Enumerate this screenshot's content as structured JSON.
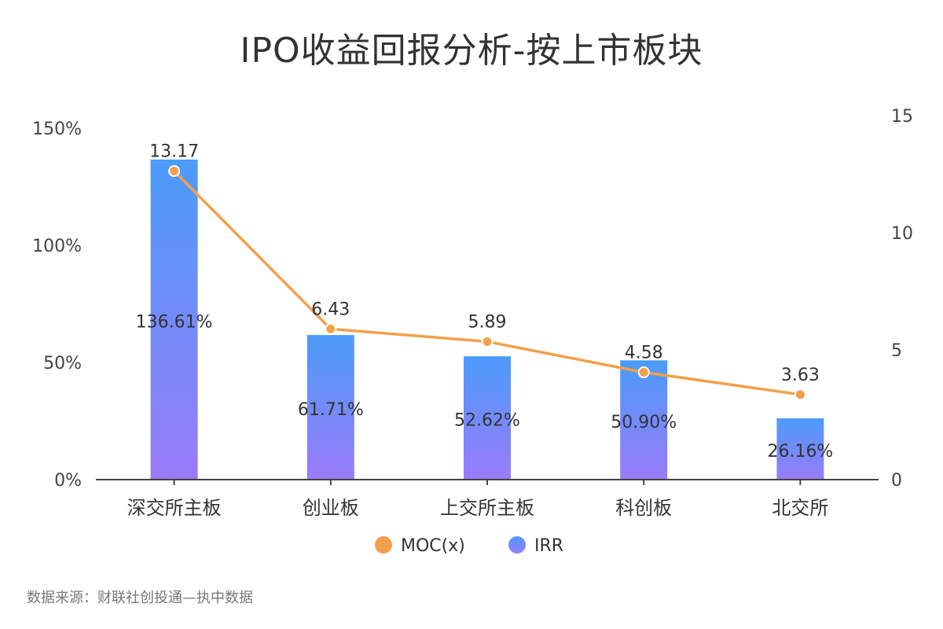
{
  "title": "IPO收益回报分析-按上市板块",
  "source": "数据来源：财联社创投通—执中数据",
  "colors": {
    "line": "#F2A04A",
    "bar_top": "#4C9BFA",
    "bar_bottom": "#9A7BFA",
    "axis": "#444444"
  },
  "chart_data": {
    "type": "bar+line",
    "categories": [
      "深交所主板",
      "创业板",
      "上交所主板",
      "科创板",
      "北交所"
    ],
    "series": [
      {
        "name": "IRR",
        "type": "bar",
        "axis": "left",
        "values": [
          136.61,
          61.71,
          52.62,
          50.9,
          26.16
        ],
        "labels": [
          "136.61%",
          "61.71%",
          "52.62%",
          "50.90%",
          "26.16%"
        ]
      },
      {
        "name": "MOC(x)",
        "type": "line",
        "axis": "right",
        "values": [
          13.17,
          6.43,
          5.89,
          4.58,
          3.63
        ],
        "labels": [
          "13.17",
          "6.43",
          "5.89",
          "4.58",
          "3.63"
        ]
      }
    ],
    "left_axis": {
      "ylim": [
        0,
        150
      ],
      "ticks": [
        0,
        50,
        100,
        150
      ],
      "tick_labels": [
        "0%",
        "50%",
        "100%",
        "150%"
      ]
    },
    "right_axis": {
      "ylim": [
        0,
        15
      ],
      "ticks": [
        0,
        5,
        10,
        15
      ],
      "tick_labels": [
        "0",
        "5",
        "10",
        "15"
      ]
    },
    "legend": [
      {
        "name": "MOC(x)",
        "marker": "line-dot"
      },
      {
        "name": "IRR",
        "marker": "bar-dot"
      }
    ],
    "legend_position": "bottom-center"
  }
}
